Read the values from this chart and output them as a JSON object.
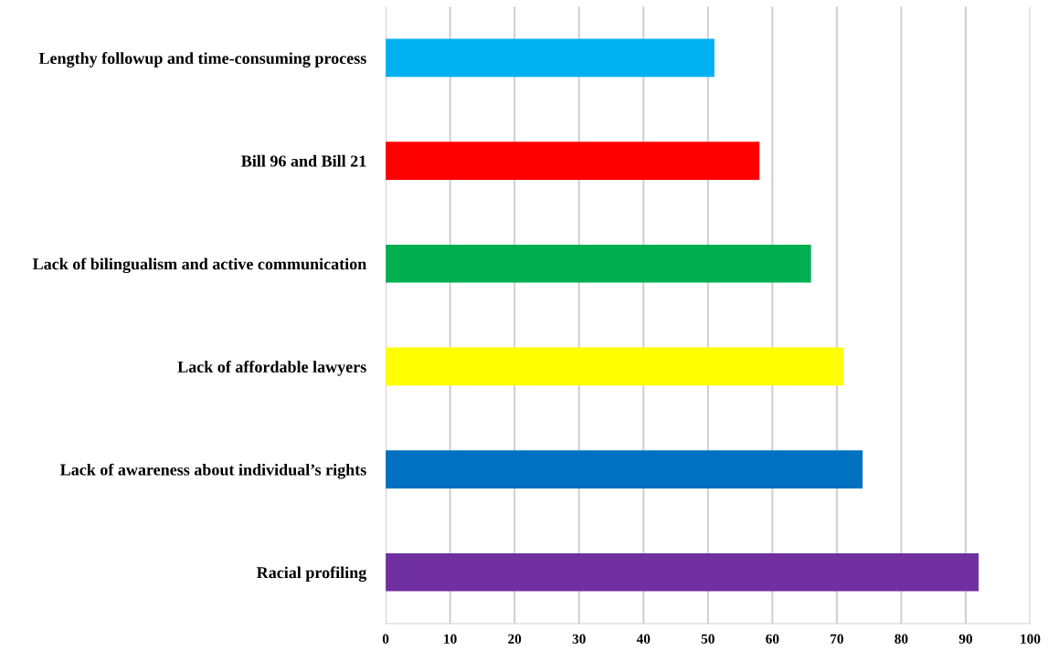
{
  "chart_data": {
    "type": "bar",
    "orientation": "horizontal",
    "categories": [
      "Lengthy followup and time-consuming process",
      "Bill 96 and Bill 21",
      "Lack of bilingualism and active communication",
      "Lack of affordable lawyers",
      "Lack of awareness about individual’s rights",
      "Racial profiling"
    ],
    "values": [
      51,
      58,
      66,
      71,
      74,
      92
    ],
    "colors": [
      "#00b0f0",
      "#ff0000",
      "#00b050",
      "#ffff00",
      "#0070c0",
      "#7030a0"
    ],
    "xlim": [
      0,
      100
    ],
    "xticks": [
      0,
      10,
      20,
      30,
      40,
      50,
      60,
      70,
      80,
      90,
      100
    ],
    "grid": "x",
    "legend": false
  }
}
